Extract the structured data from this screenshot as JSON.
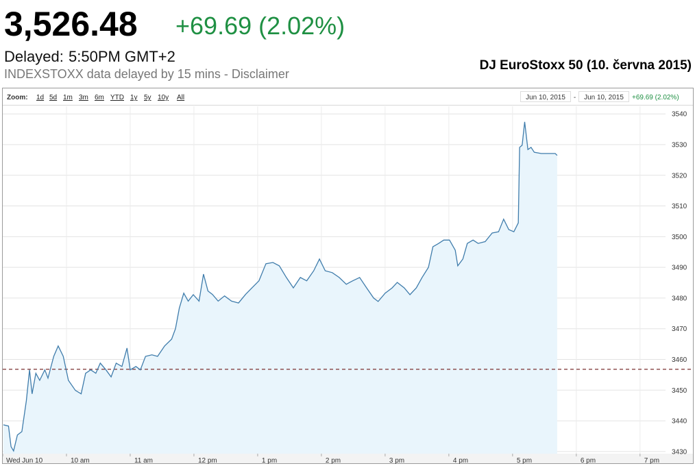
{
  "header": {
    "price": "3,526.48",
    "change": "+69.69 (2.02%)",
    "delayed_label": "Delayed:",
    "delayed_time": "5:50PM GMT+2",
    "source_note": "INDEXSTOXX data delayed by 15 mins - Disclaimer"
  },
  "chart_data": {
    "type": "line",
    "title": "DJ EuroStoxx 50 (10. června 2015)",
    "zoom": {
      "label": "Zoom:",
      "options": [
        "1d",
        "5d",
        "1m",
        "3m",
        "6m",
        "YTD",
        "1y",
        "5y",
        "10y",
        "All"
      ]
    },
    "range": {
      "from": "Jun 10, 2015",
      "separator": "-",
      "to": "Jun 10, 2015",
      "change": "+69.69 (2.02%)"
    },
    "x": [
      9.01,
      9.09,
      9.13,
      9.17,
      9.23,
      9.3,
      9.37,
      9.42,
      9.46,
      9.52,
      9.58,
      9.66,
      9.71,
      9.8,
      9.87,
      9.95,
      10.03,
      10.14,
      10.23,
      10.3,
      10.38,
      10.46,
      10.53,
      10.62,
      10.7,
      10.78,
      10.87,
      10.95,
      11.0,
      11.09,
      11.16,
      11.24,
      11.34,
      11.43,
      11.54,
      11.65,
      11.71,
      11.77,
      11.84,
      11.91,
      11.99,
      12.08,
      12.15,
      12.22,
      12.29,
      12.38,
      12.48,
      12.59,
      12.7,
      12.81,
      12.91,
      13.02,
      13.13,
      13.24,
      13.34,
      13.45,
      13.56,
      13.67,
      13.77,
      13.88,
      13.97,
      14.06,
      14.17,
      14.28,
      14.39,
      14.49,
      14.6,
      14.71,
      14.82,
      14.89,
      15.0,
      15.11,
      15.19,
      15.3,
      15.39,
      15.49,
      15.58,
      15.68,
      15.75,
      15.84,
      15.92,
      16.01,
      16.1,
      16.14,
      16.22,
      16.29,
      16.38,
      16.46,
      16.57,
      16.68,
      16.78,
      16.86,
      16.94,
      17.02,
      17.09,
      17.11,
      17.15,
      17.19,
      17.24,
      17.29,
      17.34,
      17.45,
      17.56,
      17.67,
      17.7
    ],
    "values": [
      3438.7,
      3438.3,
      3431.6,
      3430.2,
      3435.4,
      3436.5,
      3446.5,
      3456.6,
      3448.8,
      3455.5,
      3453.2,
      3456.6,
      3453.9,
      3461.0,
      3464.4,
      3461.0,
      3453.2,
      3449.9,
      3448.8,
      3455.5,
      3456.6,
      3455.5,
      3458.8,
      3456.6,
      3454.3,
      3458.8,
      3457.7,
      3463.7,
      3456.6,
      3457.7,
      3456.6,
      3461.0,
      3461.5,
      3461.0,
      3464.4,
      3466.6,
      3470.0,
      3476.7,
      3481.6,
      3479.0,
      3481.1,
      3479.0,
      3487.8,
      3482.3,
      3481.2,
      3479.0,
      3480.7,
      3479.0,
      3478.4,
      3481.2,
      3483.3,
      3485.6,
      3491.2,
      3491.6,
      3490.5,
      3486.7,
      3483.3,
      3486.7,
      3485.6,
      3488.9,
      3492.7,
      3488.9,
      3488.3,
      3486.7,
      3484.5,
      3485.6,
      3486.7,
      3483.3,
      3480.0,
      3478.9,
      3481.6,
      3483.3,
      3485.1,
      3483.3,
      3481.1,
      3483.3,
      3486.7,
      3490.0,
      3496.7,
      3497.8,
      3498.9,
      3498.9,
      3495.6,
      3490.5,
      3492.7,
      3497.8,
      3498.9,
      3497.8,
      3498.4,
      3501.2,
      3501.6,
      3505.7,
      3502.3,
      3501.6,
      3504.5,
      3529.1,
      3529.8,
      3537.4,
      3528.4,
      3529.1,
      3527.5,
      3527.1,
      3527.1,
      3527.1,
      3526.48
    ],
    "color": "#3f7cab",
    "fill_color": "#e9f5fc",
    "reference_line": {
      "value": 3456.79,
      "color": "#7a2e2e",
      "style": "dashed"
    },
    "xlim": [
      9,
      19.4
    ],
    "xticks": [
      {
        "value": 9,
        "label": "Wed Jun 10"
      },
      {
        "value": 10,
        "label": "10 am"
      },
      {
        "value": 11,
        "label": "11 am"
      },
      {
        "value": 12,
        "label": "12 pm"
      },
      {
        "value": 13,
        "label": "1 pm"
      },
      {
        "value": 14,
        "label": "2 pm"
      },
      {
        "value": 15,
        "label": "3 pm"
      },
      {
        "value": 16,
        "label": "4 pm"
      },
      {
        "value": 17,
        "label": "5 pm"
      },
      {
        "value": 18,
        "label": "6 pm"
      },
      {
        "value": 19,
        "label": "7 pm"
      }
    ],
    "ylim": [
      3429.3,
      3542.5
    ],
    "yticks": [
      3430,
      3440,
      3450,
      3460,
      3470,
      3480,
      3490,
      3500,
      3510,
      3520,
      3530,
      3540
    ],
    "grid": true
  }
}
